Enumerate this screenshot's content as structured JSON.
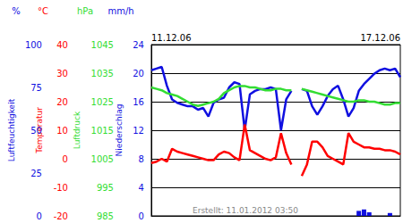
{
  "chart_data": {
    "type": "line",
    "annotation": "Erstellt: 11.01.2012 03:50",
    "grid": true,
    "categories": [
      "11.12.06",
      null,
      null,
      null,
      null,
      null,
      null,
      null,
      null,
      null,
      null,
      null,
      null,
      null,
      null,
      null,
      null,
      null,
      null,
      null,
      null,
      null,
      null,
      null,
      null,
      null,
      null,
      null,
      null,
      null,
      null,
      null,
      null,
      null,
      null,
      null,
      null,
      null,
      null,
      null,
      null,
      null,
      null,
      null,
      null,
      null,
      null,
      null,
      "17.12.06"
    ],
    "series": [
      {
        "name": "Luftfeuchtigkeit",
        "unit": "%",
        "color": "#1010e0",
        "ylim": [
          0,
          100
        ],
        "yticks": [
          0,
          25,
          50,
          75,
          100
        ],
        "values": [
          85,
          86,
          87,
          76,
          68,
          66,
          65,
          64,
          64,
          62,
          63,
          58,
          66,
          68,
          69,
          75,
          78,
          77,
          50,
          71,
          73,
          74,
          74,
          75,
          74,
          50,
          68,
          73,
          null,
          74,
          73,
          64,
          59,
          64,
          70,
          74,
          76,
          68,
          58,
          63,
          73,
          77,
          80,
          83,
          85,
          86,
          85,
          86,
          81
        ]
      },
      {
        "name": "Temperatur",
        "unit": "°C",
        "color": "#ff0000",
        "ylim": [
          -20,
          40
        ],
        "yticks": [
          -20,
          -10,
          0,
          10,
          20,
          30,
          40
        ],
        "values": [
          -1.5,
          -1,
          0,
          -1,
          3.5,
          2.5,
          2,
          1.5,
          1,
          0.5,
          0,
          -0.5,
          -0.5,
          1.5,
          2.5,
          2,
          0.5,
          -0.5,
          12,
          3,
          2,
          1,
          0,
          -0.5,
          0.5,
          9,
          2,
          -2,
          null,
          -6,
          -2,
          6,
          6,
          4,
          1,
          0,
          -1,
          -2,
          9,
          6,
          5,
          4,
          4,
          3.5,
          3.5,
          3,
          3,
          2.5,
          1.5
        ]
      },
      {
        "name": "Luftdruck",
        "unit": "hPa",
        "color": "#33dd33",
        "ylim": [
          985,
          1045
        ],
        "yticks": [
          985,
          995,
          1005,
          1015,
          1025,
          1035,
          1045
        ],
        "values": [
          1030,
          1029.5,
          1029,
          1028,
          1027.5,
          1027,
          1026,
          1025,
          1024,
          1023.5,
          1024,
          1024.5,
          1025,
          1026,
          1028,
          1029,
          1030,
          1030.5,
          1030.5,
          1030,
          1030,
          1029.5,
          1029,
          1029,
          1029.5,
          1029.5,
          1029,
          1029,
          null,
          1029.5,
          1029,
          1028.5,
          1028,
          1027.5,
          1027,
          1026.5,
          1026,
          1025.5,
          1025,
          1025,
          1025.5,
          1025.5,
          1025,
          1025,
          1024.5,
          1024,
          1024,
          1024.5,
          1024.5
        ]
      },
      {
        "name": "Niederschlag",
        "unit": "mm/h",
        "color": "#1010e0",
        "type": "bar",
        "ylim": [
          0,
          24
        ],
        "yticks": [
          0,
          4,
          8,
          12,
          16,
          20,
          24
        ],
        "values": [
          0,
          0,
          0,
          0,
          0,
          0,
          0,
          0,
          0,
          0,
          0,
          0,
          0,
          0,
          0,
          0,
          0,
          0,
          0,
          0,
          0,
          0,
          0,
          0,
          0,
          0,
          0,
          0,
          0,
          0,
          0,
          0,
          0,
          0,
          0,
          0,
          0,
          0,
          0,
          0,
          0.7,
          0.9,
          0.5,
          0,
          0,
          0,
          0.4,
          0,
          0
        ]
      }
    ]
  }
}
